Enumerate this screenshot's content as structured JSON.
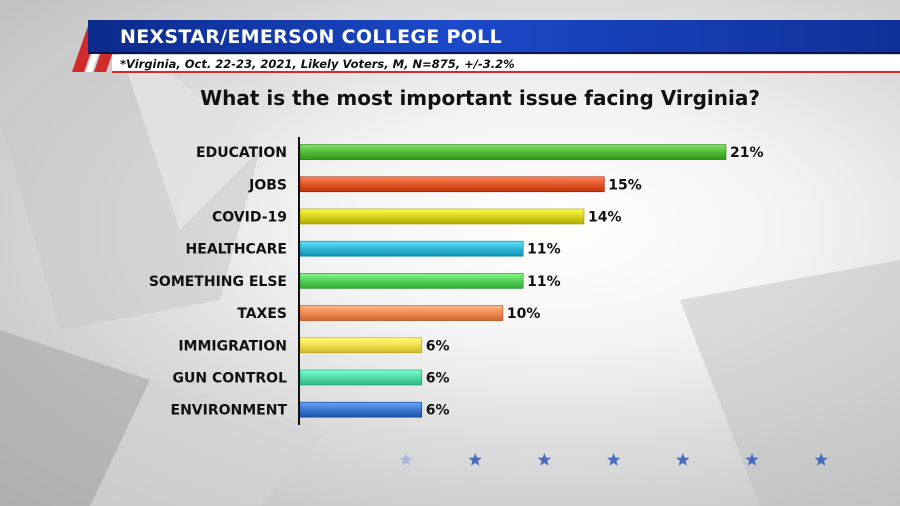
{
  "header": {
    "title": "NEXSTAR/EMERSON COLLEGE POLL",
    "subtitle": "*Virginia, Oct. 22-23, 2021, Likely Voters, M, N=875, +/-3.2%"
  },
  "colors": {
    "header_blue": "#1b49c9",
    "stripe_red": "#d22b2b"
  },
  "chart_data": {
    "type": "bar",
    "orientation": "horizontal",
    "title": "What is the most important issue facing Virginia?",
    "categories": [
      "EDUCATION",
      "JOBS",
      "COVID-19",
      "HEALTHCARE",
      "SOMETHING ELSE",
      "TAXES",
      "IMMIGRATION",
      "GUN CONTROL",
      "ENVIRONMENT"
    ],
    "values": [
      21,
      15,
      14,
      11,
      11,
      10,
      6,
      6,
      6
    ],
    "value_labels": [
      "21%",
      "15%",
      "14%",
      "11%",
      "11%",
      "10%",
      "6%",
      "6%",
      "6%"
    ],
    "colors": [
      "#55b93a",
      "#e2572a",
      "#d6d21f",
      "#33b7d6",
      "#55cf5a",
      "#f28a55",
      "#f1dd4e",
      "#52dba8",
      "#3f79cf"
    ],
    "xlim": [
      0,
      21
    ]
  }
}
